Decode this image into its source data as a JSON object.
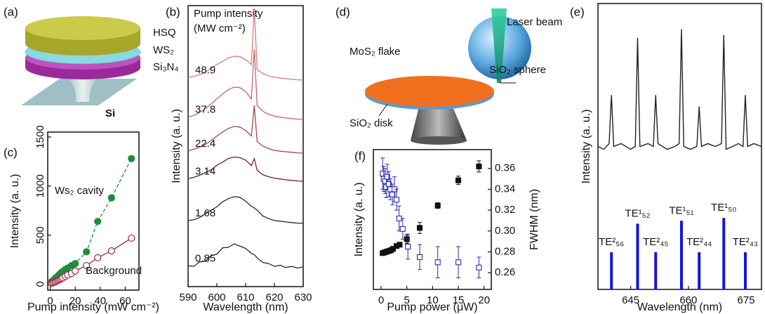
{
  "panel_labels": [
    "(a)",
    "(b)",
    "(c)",
    "(d)",
    "(e)",
    "(f)"
  ],
  "diagram_a": {
    "labels": [
      "HSQ",
      "WS₂",
      "Si₃N₄",
      "Si"
    ]
  },
  "diagram_d": {
    "labels": [
      "Laser beam",
      "MoS₂ flake",
      "SiO₂ sphere",
      "SiO₂ disk"
    ]
  },
  "chart_data": [
    {
      "type": "spectra",
      "xlabel": "Wavelength (nm)",
      "ylabel": "Intensity (a. u.)",
      "legend_title": "Pump intensity",
      "legend_units": "(MW cm⁻²)",
      "x": [
        590,
        592,
        594,
        596,
        598,
        600,
        602,
        604,
        606,
        608,
        610,
        612,
        613,
        614,
        616,
        618,
        620,
        622,
        624,
        626,
        628,
        630
      ],
      "xlim": [
        590,
        630
      ],
      "xticks": [
        590,
        600,
        610,
        620,
        630
      ],
      "ylim": [
        0,
        100
      ],
      "series": [
        {
          "name": "0.85",
          "color": "#2a2a2a",
          "values": [
            7.4,
            7.2,
            8.8,
            9.0,
            11.0,
            11.5,
            13.8,
            14.0,
            15.2,
            14.4,
            13.6,
            11.8,
            11.4,
            10.2,
            8.6,
            8.2,
            7.2,
            7.6,
            6.8,
            7.2,
            6.6,
            7.0
          ]
        },
        {
          "name": "1.68",
          "color": "#3e1c1c",
          "values": [
            23.5,
            23.8,
            24.6,
            25.9,
            27.2,
            28.4,
            30.2,
            31.3,
            32.0,
            31.8,
            30.4,
            28.6,
            28.0,
            27.2,
            25.1,
            24.2,
            23.5,
            23.3,
            23.0,
            22.8,
            22.6,
            22.5
          ]
        },
        {
          "name": "3.14",
          "color": "#6e2222",
          "values": [
            38.4,
            38.9,
            39.6,
            40.6,
            41.5,
            43.2,
            44.3,
            45.6,
            46.1,
            45.9,
            45.0,
            43.1,
            45.5,
            41.4,
            39.8,
            39.1,
            38.6,
            38.3,
            38.0,
            37.8,
            37.6,
            37.5
          ]
        },
        {
          "name": "22.4",
          "color": "#a34848",
          "values": [
            48.3,
            48.9,
            49.6,
            50.6,
            52.0,
            53.6,
            55.0,
            56.3,
            57.0,
            56.8,
            55.6,
            53.6,
            64.5,
            51.6,
            50.0,
            49.1,
            48.5,
            48.2,
            48.0,
            47.8,
            47.6,
            47.5
          ]
        },
        {
          "name": "37.8",
          "color": "#c86565",
          "values": [
            60.4,
            60.9,
            62.0,
            63.3,
            65.0,
            66.8,
            68.6,
            70.1,
            71.0,
            70.8,
            69.4,
            66.8,
            84.5,
            64.4,
            62.4,
            61.3,
            60.7,
            60.3,
            60.0,
            59.8,
            59.6,
            59.5
          ]
        },
        {
          "name": "48.9",
          "color": "#e07878",
          "values": [
            74.4,
            74.8,
            75.4,
            76.4,
            77.6,
            79.0,
            80.2,
            81.4,
            82.0,
            81.8,
            80.8,
            79.0,
            99.0,
            77.2,
            75.8,
            75.0,
            74.5,
            74.2,
            74.0,
            73.8,
            73.6,
            73.5
          ]
        }
      ]
    },
    {
      "type": "scatter",
      "xlabel": "Pump intensity (mW cm⁻²)",
      "ylabel": "Intensity (a. u.)",
      "xlim": [
        -2,
        71
      ],
      "xticks": [
        0,
        20,
        40,
        60
      ],
      "ylim": [
        -60,
        1550
      ],
      "yticks": [
        0,
        500,
        1000,
        1500
      ],
      "series": [
        {
          "name": "Ws₂ cavity",
          "color": "#1e8c3e",
          "marker": "filled",
          "line_style": "dashed",
          "x": [
            1,
            2,
            3,
            4,
            5,
            6,
            7,
            8,
            9,
            10,
            12,
            14,
            17,
            20,
            29,
            38,
            49,
            65
          ],
          "values": [
            25,
            35,
            45,
            60,
            70,
            80,
            95,
            105,
            120,
            130,
            150,
            165,
            190,
            210,
            330,
            640,
            880,
            1280
          ]
        },
        {
          "name": "Background",
          "color": "#9a2a3a",
          "marker": "open",
          "line_style": "solid",
          "x": [
            1,
            2,
            3,
            4,
            5,
            6,
            7,
            8,
            9,
            10,
            12,
            14,
            17,
            20,
            29,
            38,
            49,
            65
          ],
          "values": [
            10,
            15,
            20,
            25,
            32,
            38,
            45,
            50,
            58,
            65,
            80,
            95,
            110,
            135,
            190,
            270,
            340,
            470
          ]
        }
      ]
    },
    {
      "type": "errorbar",
      "xlabel": "Pump power (μW)",
      "ylabel": "Intensity (a. u.)",
      "y2label": "FWHM (nm)",
      "xlim": [
        -1.5,
        21.4
      ],
      "xticks": [
        0,
        5,
        10,
        15,
        20
      ],
      "ylim": [
        0,
        100
      ],
      "y2lim": [
        0.244,
        0.378
      ],
      "y2ticks": [
        0.26,
        0.28,
        {
          "value": 0.3,
          "label": "0.30"
        },
        0.32,
        0.34,
        0.36
      ],
      "series": [
        {
          "color": "#111111",
          "marker": "filled",
          "x": [
            0.3,
            0.7,
            1.1,
            1.5,
            1.9,
            2.3,
            3,
            3.6,
            5,
            7.5,
            11,
            15,
            19
          ],
          "values": [
            26,
            26.5,
            27,
            27.5,
            28,
            29,
            31,
            32,
            36,
            44,
            60,
            78,
            88
          ],
          "errors": [
            1,
            1,
            1,
            1,
            1,
            1,
            1,
            1,
            3,
            4,
            2,
            3,
            4
          ]
        },
        {
          "color": "#2b2bb0",
          "marker": "open",
          "axis": "y2",
          "x": [
            0.3,
            0.5,
            0.8,
            1.0,
            1.2,
            1.5,
            1.8,
            2.2,
            2.6,
            3.0,
            3.5,
            4.2,
            5.2,
            7.5,
            11,
            15,
            19
          ],
          "values": [
            0.355,
            0.35,
            0.348,
            0.342,
            0.352,
            0.345,
            0.34,
            0.335,
            0.34,
            0.33,
            0.312,
            0.302,
            0.285,
            0.275,
            0.27,
            0.27,
            0.265
          ],
          "errors": [
            0.015,
            0.012,
            0.012,
            0.01,
            0.012,
            0.012,
            0.01,
            0.01,
            0.012,
            0.01,
            0.012,
            0.01,
            0.012,
            0.012,
            0.015,
            0.015,
            0.01
          ]
        }
      ]
    },
    {
      "type": "spectrum-modes",
      "xlabel": "Wavelength (nm)",
      "ylabel": "Intensity (a. u.)",
      "xlim": [
        636.5,
        679
      ],
      "xticks": [
        645,
        660,
        675
      ],
      "ylim": [
        0,
        100
      ],
      "color": "#222222",
      "x": [
        636.5,
        638,
        639.4,
        640,
        640.6,
        642.5,
        645,
        646.2,
        646.8,
        647.4,
        649.5,
        650.9,
        651.5,
        652.1,
        654.5,
        656.5,
        657.6,
        658.2,
        658.8,
        660.5,
        662.2,
        662.8,
        663.4,
        665,
        667,
        668.6,
        669.2,
        669.8,
        671.5,
        673,
        674.2,
        674.8,
        675.4,
        677,
        679
      ],
      "values": [
        50,
        49,
        51,
        68,
        50,
        51,
        49,
        50,
        88,
        50,
        51,
        50,
        68,
        51,
        49,
        50,
        51,
        91,
        50,
        49,
        50,
        64,
        50,
        51,
        50,
        51,
        89,
        49,
        50,
        51,
        50,
        68,
        50,
        51,
        50
      ],
      "modes": {
        "color": "#1414e0",
        "x": [
          640,
          646.8,
          651.5,
          658.2,
          662.8,
          669.2,
          674.8
        ],
        "values": [
          13,
          23,
          13,
          24,
          13,
          25,
          13
        ],
        "labels": [
          "TE²₅₆",
          "TE¹₅₂",
          "TE²₄₅",
          "TE¹₅₁",
          "TE²₄₄",
          "TE¹₅₀",
          "TE²₄₃"
        ]
      }
    }
  ]
}
